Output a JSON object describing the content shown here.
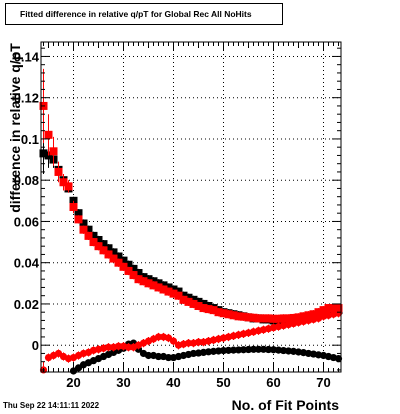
{
  "chart_data": {
    "type": "scatter",
    "title": "Fitted difference in relative q/pT for Global Rec All NoHits",
    "xlabel": "No. of Fit Points",
    "ylabel": "difference in relative q/pT",
    "xlim": [
      13.5,
      73.5
    ],
    "ylim": [
      -0.013,
      0.147
    ],
    "x_ticks": [
      20,
      30,
      40,
      50,
      60,
      70
    ],
    "y_ticks": [
      0,
      0.02,
      0.04,
      0.06,
      0.08,
      0.1,
      0.12,
      0.14
    ],
    "y_tick_labels": [
      "0",
      "0.02",
      "0.04",
      "0.06",
      "0.08",
      "0.1",
      "0.12",
      "0.14"
    ],
    "grid": true,
    "timestamp": "Thu Sep 22 14:11:11 2022",
    "series": [
      {
        "color": "#000000",
        "marker": "square",
        "x": [
          14,
          15,
          16,
          17,
          18,
          19,
          20,
          21,
          22,
          23,
          24,
          25,
          26,
          27,
          28,
          29,
          30,
          31,
          32,
          33,
          34,
          35,
          36,
          37,
          38,
          39,
          40,
          41,
          42,
          43,
          44,
          45,
          46,
          47,
          48,
          49,
          50,
          51,
          52,
          53,
          54,
          55,
          56,
          57,
          58,
          59,
          60,
          61,
          62,
          63,
          64,
          65,
          66,
          67,
          68,
          69,
          70,
          71,
          72,
          73
        ],
        "y": [
          0.093,
          0.092,
          0.09,
          0.085,
          0.08,
          0.076,
          0.07,
          0.064,
          0.059,
          0.056,
          0.053,
          0.051,
          0.049,
          0.047,
          0.045,
          0.043,
          0.041,
          0.039,
          0.037,
          0.035,
          0.033,
          0.032,
          0.031,
          0.03,
          0.029,
          0.028,
          0.027,
          0.026,
          0.024,
          0.023,
          0.022,
          0.021,
          0.02,
          0.019,
          0.018,
          0.017,
          0.016,
          0.0155,
          0.015,
          0.0145,
          0.014,
          0.0135,
          0.013,
          0.013,
          0.0125,
          0.0125,
          0.012,
          0.012,
          0.012,
          0.012,
          0.0122,
          0.0125,
          0.013,
          0.0135,
          0.014,
          0.0145,
          0.015,
          0.016,
          0.016,
          0.017
        ],
        "yerr": [
          0.01,
          0.006,
          0.004,
          0.003,
          0.003,
          0.002,
          0.002,
          0.002,
          0.002,
          0.002,
          0.002,
          0.002,
          0.002,
          0.002,
          0.002,
          0.002,
          0.002,
          0.002,
          0.002,
          0.002,
          0.002,
          0.002,
          0.002,
          0.002,
          0.002,
          0.002,
          0.002,
          0.002,
          0.002,
          0.002,
          0.002,
          0.002,
          0.002,
          0.002,
          0.002,
          0.002,
          0.002,
          0.002,
          0.002,
          0.002,
          0.002,
          0.002,
          0.002,
          0.002,
          0.002,
          0.002,
          0.002,
          0.002,
          0.002,
          0.002,
          0.002,
          0.002,
          0.002,
          0.002,
          0.002,
          0.002,
          0.002,
          0.002,
          0.002,
          0.002
        ]
      },
      {
        "color": "#ff0000",
        "marker": "square",
        "x": [
          14,
          15,
          16,
          17,
          18,
          19,
          20,
          21,
          22,
          23,
          24,
          25,
          26,
          27,
          28,
          29,
          30,
          31,
          32,
          33,
          34,
          35,
          36,
          37,
          38,
          39,
          40,
          41,
          42,
          43,
          44,
          45,
          46,
          47,
          48,
          49,
          50,
          51,
          52,
          53,
          54,
          55,
          56,
          57,
          58,
          59,
          60,
          61,
          62,
          63,
          64,
          65,
          66,
          67,
          68,
          69,
          70,
          71,
          72,
          73
        ],
        "y": [
          0.116,
          0.102,
          0.094,
          0.084,
          0.079,
          0.077,
          0.067,
          0.061,
          0.056,
          0.053,
          0.05,
          0.048,
          0.046,
          0.044,
          0.042,
          0.04,
          0.038,
          0.036,
          0.034,
          0.032,
          0.031,
          0.03,
          0.029,
          0.028,
          0.027,
          0.026,
          0.025,
          0.024,
          0.022,
          0.021,
          0.02,
          0.019,
          0.018,
          0.0175,
          0.017,
          0.016,
          0.0155,
          0.015,
          0.0145,
          0.014,
          0.0138,
          0.0135,
          0.0133,
          0.013,
          0.013,
          0.013,
          0.0128,
          0.0128,
          0.013,
          0.013,
          0.0132,
          0.0135,
          0.014,
          0.0145,
          0.015,
          0.016,
          0.017,
          0.018,
          0.018,
          0.018
        ],
        "yerr": [
          0.018,
          0.01,
          0.007,
          0.005,
          0.004,
          0.003,
          0.003,
          0.002,
          0.002,
          0.002,
          0.002,
          0.002,
          0.002,
          0.002,
          0.002,
          0.002,
          0.002,
          0.002,
          0.002,
          0.002,
          0.002,
          0.002,
          0.002,
          0.002,
          0.002,
          0.002,
          0.002,
          0.002,
          0.002,
          0.002,
          0.002,
          0.002,
          0.002,
          0.002,
          0.002,
          0.002,
          0.002,
          0.002,
          0.002,
          0.002,
          0.002,
          0.002,
          0.002,
          0.002,
          0.002,
          0.002,
          0.002,
          0.002,
          0.002,
          0.002,
          0.002,
          0.002,
          0.002,
          0.002,
          0.002,
          0.002,
          0.002,
          0.002,
          0.002,
          0.002
        ]
      },
      {
        "color": "#000000",
        "marker": "circle",
        "x": [
          20,
          21,
          22,
          23,
          24,
          25,
          26,
          27,
          28,
          29,
          30,
          31,
          32,
          33,
          34,
          35,
          36,
          37,
          38,
          39,
          40,
          41,
          42,
          43,
          44,
          45,
          46,
          47,
          48,
          49,
          50,
          51,
          52,
          53,
          54,
          55,
          56,
          57,
          58,
          59,
          60,
          61,
          62,
          63,
          64,
          65,
          66,
          67,
          68,
          69,
          70,
          71,
          72,
          73
        ],
        "y": [
          -0.0125,
          -0.011,
          -0.0095,
          -0.0085,
          -0.0075,
          -0.0065,
          -0.0055,
          -0.0045,
          -0.0035,
          -0.0025,
          -0.0015,
          0.0005,
          0.001,
          -0.002,
          -0.004,
          -0.005,
          -0.005,
          -0.0055,
          -0.0055,
          -0.006,
          -0.006,
          -0.0055,
          -0.005,
          -0.0045,
          -0.004,
          -0.0038,
          -0.0035,
          -0.0032,
          -0.003,
          -0.0028,
          -0.0026,
          -0.0025,
          -0.0024,
          -0.0023,
          -0.0022,
          -0.0021,
          -0.002,
          -0.002,
          -0.002,
          -0.0021,
          -0.0022,
          -0.0024,
          -0.0026,
          -0.0028,
          -0.003,
          -0.0033,
          -0.0036,
          -0.004,
          -0.0043,
          -0.0047,
          -0.005,
          -0.0055,
          -0.006,
          -0.0065
        ],
        "yerr": []
      },
      {
        "color": "#ff0000",
        "marker": "circle",
        "x": [
          14,
          15,
          16,
          17,
          18,
          19,
          20,
          21,
          22,
          23,
          24,
          25,
          26,
          27,
          28,
          29,
          30,
          31,
          32,
          33,
          34,
          35,
          36,
          37,
          38,
          39,
          40,
          41,
          42,
          43,
          44,
          45,
          46,
          47,
          48,
          49,
          50,
          51,
          52,
          53,
          54,
          55,
          56,
          57,
          58,
          59,
          60,
          61,
          62,
          63,
          64,
          65,
          66,
          67,
          68,
          69,
          70,
          71,
          72,
          73
        ],
        "y": [
          -0.012,
          -0.006,
          -0.005,
          -0.004,
          -0.0055,
          -0.0065,
          -0.006,
          -0.005,
          -0.004,
          -0.0035,
          -0.0025,
          -0.002,
          -0.0015,
          -0.001,
          -0.001,
          -0.0005,
          -0.0005,
          -0.001,
          -0.001,
          0.0,
          0.001,
          0.002,
          0.003,
          0.004,
          0.004,
          0.0035,
          0.002,
          0.0,
          0.0005,
          0.001,
          0.001,
          0.0015,
          0.0015,
          0.002,
          0.0025,
          0.003,
          0.0035,
          0.004,
          0.0045,
          0.005,
          0.0055,
          0.006,
          0.0065,
          0.007,
          0.0075,
          0.008,
          0.0085,
          0.009,
          0.0095,
          0.01,
          0.0105,
          0.011,
          0.0115,
          0.012,
          0.0125,
          0.013,
          0.014,
          0.0145,
          0.015,
          0.0155
        ],
        "yerr": [
          0.004,
          0.002,
          0.002,
          0.002,
          0.002,
          0.002,
          0.002,
          0.002,
          0.002,
          0.002,
          0.002,
          0.002,
          0.002,
          0.002,
          0.002,
          0.002,
          0.002,
          0.002,
          0.002,
          0.002,
          0.002,
          0.002,
          0.002,
          0.002,
          0.002,
          0.002,
          0.002,
          0.002,
          0.002,
          0.002,
          0.002,
          0.002,
          0.002,
          0.002,
          0.002,
          0.002,
          0.002,
          0.002,
          0.002,
          0.002,
          0.002,
          0.002,
          0.002,
          0.002,
          0.002,
          0.002,
          0.002,
          0.002,
          0.002,
          0.002,
          0.002,
          0.002,
          0.002,
          0.002,
          0.002,
          0.002,
          0.002,
          0.002,
          0.002,
          0.002
        ]
      }
    ]
  }
}
